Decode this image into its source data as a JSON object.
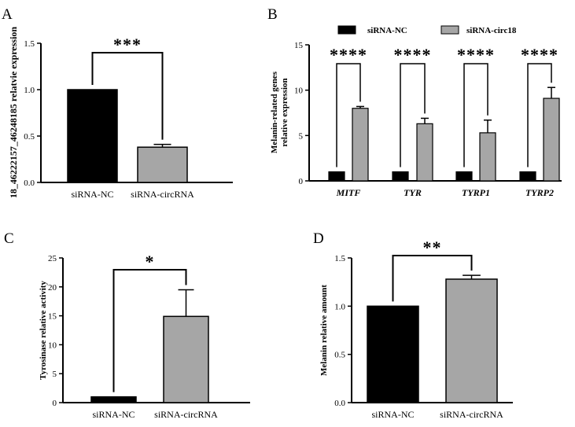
{
  "colors": {
    "nc": "#000000",
    "circ": "#a6a6a6",
    "axis": "#000000"
  },
  "chart_data": [
    {
      "panel": "A",
      "type": "bar",
      "ylabel": "18_46222157_46248185 relatvie expression",
      "categories": [
        "siRNA-NC",
        "siRNA-circRNA"
      ],
      "values": [
        1.0,
        0.38
      ],
      "errors": [
        0,
        0.03
      ],
      "ylim": [
        0,
        1.5
      ],
      "yticks": [
        "0.0",
        "0.5",
        "1.0",
        "1.5"
      ],
      "ytick_values": [
        0,
        0.5,
        1.0,
        1.5
      ],
      "significance": "***"
    },
    {
      "panel": "B",
      "type": "bar",
      "ylabel_line1": "Melanin-related genes",
      "ylabel_line2": "relative expression",
      "categories": [
        "MITF",
        "TYR",
        "TYRP1",
        "TYRP2"
      ],
      "series": [
        {
          "name": "siRNA-NC",
          "values": [
            1,
            1,
            1,
            1
          ],
          "errors": [
            0,
            0,
            0,
            0
          ]
        },
        {
          "name": "siRNA-circ18",
          "values": [
            8.0,
            6.3,
            5.3,
            9.1
          ],
          "errors": [
            0.2,
            0.6,
            1.4,
            1.2
          ]
        }
      ],
      "ylim": [
        0,
        15
      ],
      "yticks": [
        "0",
        "5",
        "10",
        "15"
      ],
      "ytick_values": [
        0,
        5,
        10,
        15
      ],
      "significance": [
        "****",
        "****",
        "****",
        "****"
      ]
    },
    {
      "panel": "C",
      "type": "bar",
      "ylabel": "Tyrosinase relative activity",
      "categories": [
        "siRNA-NC",
        "siRNA-circRNA"
      ],
      "values": [
        1.0,
        14.9
      ],
      "errors": [
        0,
        4.6
      ],
      "ylim": [
        0,
        25
      ],
      "yticks": [
        "0",
        "5",
        "10",
        "15",
        "20",
        "25"
      ],
      "ytick_values": [
        0,
        5,
        10,
        15,
        20,
        25
      ],
      "significance": "*"
    },
    {
      "panel": "D",
      "type": "bar",
      "ylabel": "Melanin relative amount",
      "categories": [
        "siRNA-NC",
        "siRNA-circRNA"
      ],
      "values": [
        1.0,
        1.28
      ],
      "errors": [
        0,
        0.04
      ],
      "ylim": [
        0,
        1.5
      ],
      "yticks": [
        "0.0",
        "0.5",
        "1.0",
        "1.5"
      ],
      "ytick_values": [
        0,
        0.5,
        1.0,
        1.5
      ],
      "significance": "**"
    }
  ]
}
